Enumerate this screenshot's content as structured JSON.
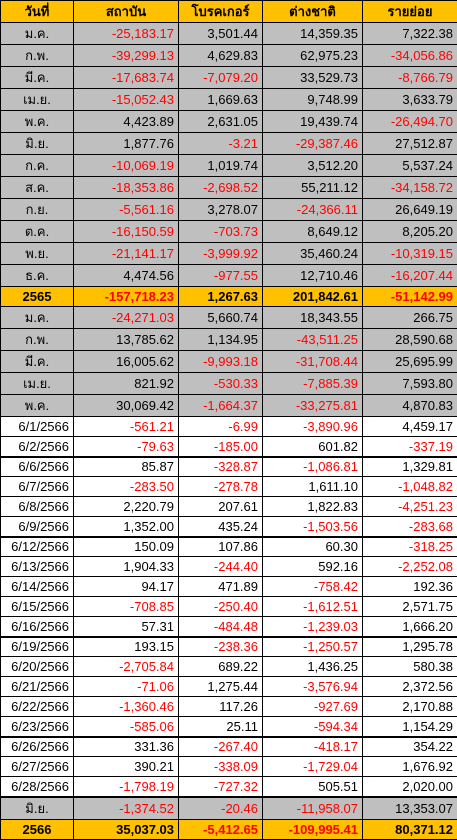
{
  "headers": [
    "วันที่",
    "สถาบัน",
    "โบรคเกอร์",
    "ต่างชาติ",
    "รายย่อย"
  ],
  "rows": [
    {
      "type": "month",
      "cells": [
        "ม.ค.",
        "-25,183.17",
        "3,501.44",
        "14,359.35",
        "7,322.38"
      ]
    },
    {
      "type": "month",
      "cells": [
        "ก.พ.",
        "-39,299.13",
        "4,629.83",
        "62,975.23",
        "-34,056.86"
      ]
    },
    {
      "type": "month",
      "cells": [
        "มี.ค.",
        "-17,683.74",
        "-7,079.20",
        "33,529.73",
        "-8,766.79"
      ]
    },
    {
      "type": "month",
      "cells": [
        "เม.ย.",
        "-15,052.43",
        "1,669.63",
        "9,748.99",
        "3,633.79"
      ]
    },
    {
      "type": "month",
      "cells": [
        "พ.ค.",
        "4,423.89",
        "2,631.05",
        "19,439.74",
        "-26,494.70"
      ]
    },
    {
      "type": "month",
      "cells": [
        "มิ.ย.",
        "1,877.76",
        "-3.21",
        "-29,387.46",
        "27,512.87"
      ]
    },
    {
      "type": "month",
      "cells": [
        "ก.ค.",
        "-10,069.19",
        "1,019.74",
        "3,512.20",
        "5,537.24"
      ]
    },
    {
      "type": "month",
      "cells": [
        "ส.ค.",
        "-18,353.86",
        "-2,698.52",
        "55,211.12",
        "-34,158.72"
      ]
    },
    {
      "type": "month",
      "cells": [
        "ก.ย.",
        "-5,561.16",
        "3,278.07",
        "-24,366.11",
        "26,649.19"
      ]
    },
    {
      "type": "month",
      "cells": [
        "ต.ค.",
        "-16,150.59",
        "-703.73",
        "8,649.12",
        "8,205.20"
      ]
    },
    {
      "type": "month",
      "cells": [
        "พ.ย.",
        "-21,141.17",
        "-3,999.92",
        "35,460.24",
        "-10,319.15"
      ]
    },
    {
      "type": "month",
      "cells": [
        "ธ.ค.",
        "4,474.56",
        "-977.55",
        "12,710.46",
        "-16,207.44"
      ]
    },
    {
      "type": "total",
      "cells": [
        "2565",
        "-157,718.23",
        "1,267.63",
        "201,842.61",
        "-51,142.99"
      ]
    },
    {
      "type": "month",
      "cells": [
        "ม.ค.",
        "-24,271.03",
        "5,660.74",
        "18,343.55",
        "266.75"
      ]
    },
    {
      "type": "month",
      "cells": [
        "ก.พ.",
        "13,785.62",
        "1,134.95",
        "-43,511.25",
        "28,590.68"
      ]
    },
    {
      "type": "month",
      "cells": [
        "มี.ค.",
        "16,005.62",
        "-9,993.18",
        "-31,708.44",
        "25,695.99"
      ]
    },
    {
      "type": "month",
      "cells": [
        "เม.ย.",
        "821.92",
        "-530.33",
        "-7,885.39",
        "7,593.80"
      ]
    },
    {
      "type": "month",
      "cells": [
        "พ.ค.",
        "30,069.42",
        "-1,664.37",
        "-33,275.81",
        "4,870.83"
      ]
    },
    {
      "type": "daily",
      "cells": [
        "6/1/2566",
        "-561.21",
        "-6.99",
        "-3,890.96",
        "4,459.17"
      ]
    },
    {
      "type": "daily",
      "cells": [
        "6/2/2566",
        "-79.63",
        "-185.00",
        "601.82",
        "-337.19"
      ]
    },
    {
      "type": "daily",
      "group_start": true,
      "cells": [
        "6/6/2566",
        "85.87",
        "-328.87",
        "-1,086.81",
        "1,329.81"
      ]
    },
    {
      "type": "daily",
      "cells": [
        "6/7/2566",
        "-283.50",
        "-278.78",
        "1,611.10",
        "-1,048.82"
      ]
    },
    {
      "type": "daily",
      "cells": [
        "6/8/2566",
        "2,220.79",
        "207.61",
        "1,822.83",
        "-4,251.23"
      ]
    },
    {
      "type": "daily",
      "cells": [
        "6/9/2566",
        "1,352.00",
        "435.24",
        "-1,503.56",
        "-283.68"
      ]
    },
    {
      "type": "daily",
      "group_start": true,
      "cells": [
        "6/12/2566",
        "150.09",
        "107.86",
        "60.30",
        "-318.25"
      ]
    },
    {
      "type": "daily",
      "cells": [
        "6/13/2566",
        "1,904.33",
        "-244.40",
        "592.16",
        "-2,252.08"
      ]
    },
    {
      "type": "daily",
      "cells": [
        "6/14/2566",
        "94.17",
        "471.89",
        "-758.42",
        "192.36"
      ]
    },
    {
      "type": "daily",
      "cells": [
        "6/15/2566",
        "-708.85",
        "-250.40",
        "-1,612.51",
        "2,571.75"
      ]
    },
    {
      "type": "daily",
      "cells": [
        "6/16/2566",
        "57.31",
        "-484.48",
        "-1,239.03",
        "1,666.20"
      ]
    },
    {
      "type": "daily",
      "group_start": true,
      "cells": [
        "6/19/2566",
        "193.15",
        "-238.36",
        "-1,250.57",
        "1,295.78"
      ]
    },
    {
      "type": "daily",
      "cells": [
        "6/20/2566",
        "-2,705.84",
        "689.22",
        "1,436.25",
        "580.38"
      ]
    },
    {
      "type": "daily",
      "cells": [
        "6/21/2566",
        "-71.06",
        "1,275.44",
        "-3,576.94",
        "2,372.56"
      ]
    },
    {
      "type": "daily",
      "cells": [
        "6/22/2566",
        "-1,360.46",
        "117.26",
        "-927.69",
        "2,170.88"
      ]
    },
    {
      "type": "daily",
      "cells": [
        "6/23/2566",
        "-585.06",
        "25.11",
        "-594.34",
        "1,154.29"
      ]
    },
    {
      "type": "daily",
      "group_start": true,
      "cells": [
        "6/26/2566",
        "331.36",
        "-267.40",
        "-418.17",
        "354.22"
      ]
    },
    {
      "type": "daily",
      "cells": [
        "6/27/2566",
        "390.21",
        "-338.09",
        "-1,729.04",
        "1,676.92"
      ]
    },
    {
      "type": "daily",
      "cells": [
        "6/28/2566",
        "-1,798.19",
        "-727.32",
        "505.51",
        "2,020.00"
      ]
    },
    {
      "type": "sum",
      "group_start": true,
      "cells": [
        "มิ.ย.",
        "-1,374.52",
        "-20.46",
        "-11,958.07",
        "13,353.07"
      ]
    },
    {
      "type": "total",
      "cells": [
        "2566",
        "35,037.03",
        "-5,412.65",
        "-109,995.41",
        "80,371.12"
      ]
    }
  ],
  "colors": {
    "header_bg": "#ffc000",
    "total_bg": "#ffc000",
    "month_bg": "#bfbfbf",
    "daily_bg": "#ffffff",
    "negative_text": "#ff0000",
    "positive_text": "#000000"
  }
}
